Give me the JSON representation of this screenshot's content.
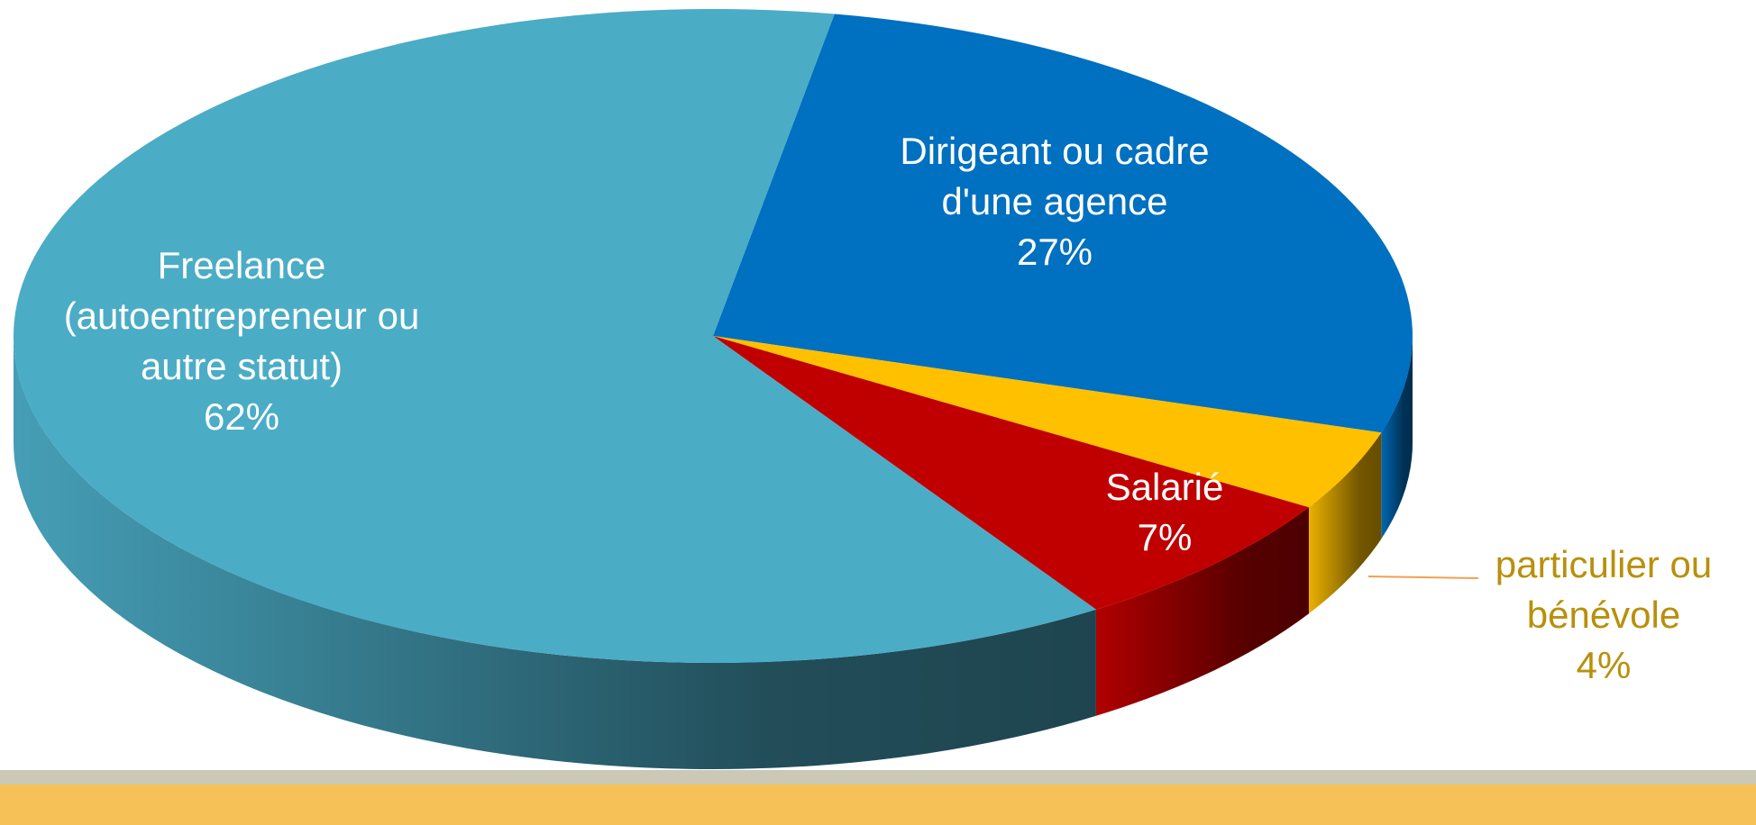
{
  "chart_data": {
    "type": "pie",
    "categories": [
      "Dirigeant ou cadre d'une agence",
      "particulier ou bénévole",
      "Salarié",
      "Freelance (autoentrepreneur ou autre statut)"
    ],
    "values": [
      27,
      4,
      7,
      62
    ],
    "value_labels": [
      "27%",
      "4%",
      "7%",
      "62%"
    ],
    "colors": [
      "#0070c0",
      "#ffc000",
      "#c00000",
      "#4bacc6"
    ]
  }
}
